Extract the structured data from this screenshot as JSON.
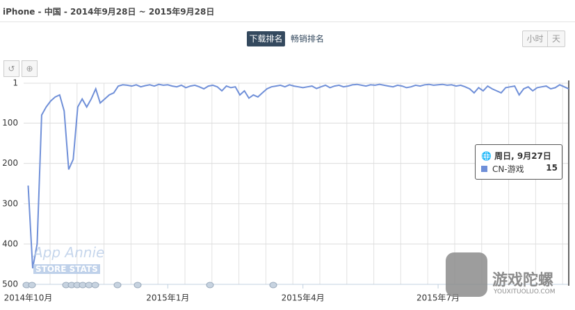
{
  "header": {
    "title": "iPhone - 中国 - 2014年9月28日 ~ 2015年9月28日"
  },
  "tabs": [
    "下载排名",
    "畅销排名"
  ],
  "granularity": [
    "小时",
    "天"
  ],
  "watermarks": {
    "app_annie": "App Annie",
    "store_stats": "STORE STATS",
    "brand": "游戏陀螺",
    "brand_url": "YOUXITUOLUO.COM"
  },
  "tooltip": {
    "date": "周日, 9月27日"
  },
  "chart_data": {
    "type": "line",
    "y_inverted": true,
    "grid": true,
    "ylim": [
      1,
      500
    ],
    "yticks": [
      1,
      100,
      200,
      300,
      400,
      500
    ],
    "categories": [
      null,
      "2014年10月",
      null,
      null,
      null,
      null,
      null,
      null,
      null,
      null,
      null,
      null,
      null,
      null,
      null,
      null,
      null,
      null,
      null,
      null,
      null,
      null,
      null,
      null,
      null,
      null,
      null,
      null,
      null,
      null,
      null,
      null,
      "2015年1月",
      null,
      null,
      null,
      null,
      null,
      null,
      null,
      null,
      null,
      null,
      null,
      null,
      null,
      null,
      null,
      null,
      null,
      null,
      null,
      null,
      null,
      null,
      null,
      null,
      null,
      null,
      null,
      null,
      null,
      "2015年4月",
      null,
      null,
      null,
      null,
      null,
      null,
      null,
      null,
      null,
      null,
      null,
      null,
      null,
      null,
      null,
      null,
      null,
      null,
      null,
      null,
      null,
      null,
      null,
      null,
      null,
      null,
      null,
      null,
      null,
      "2015年7月",
      null,
      null,
      null,
      null,
      null,
      null,
      null,
      null,
      null,
      null,
      null,
      null,
      null,
      null,
      null,
      null,
      null,
      null,
      null,
      null,
      null,
      null,
      null,
      null,
      null,
      null,
      null,
      null,
      null
    ],
    "series": [
      {
        "name": "CN-游戏",
        "color": "#6f8fd8",
        "values": [
          null,
          255,
          460,
          400,
          80,
          60,
          45,
          35,
          30,
          70,
          215,
          190,
          60,
          40,
          60,
          40,
          15,
          50,
          40,
          30,
          25,
          8,
          5,
          6,
          8,
          5,
          10,
          7,
          5,
          8,
          4,
          6,
          5,
          8,
          10,
          6,
          12,
          8,
          6,
          10,
          15,
          8,
          6,
          10,
          20,
          8,
          12,
          10,
          30,
          20,
          38,
          30,
          35,
          25,
          15,
          10,
          8,
          6,
          10,
          5,
          8,
          10,
          12,
          10,
          8,
          14,
          10,
          6,
          12,
          8,
          6,
          10,
          8,
          5,
          4,
          6,
          8,
          5,
          6,
          4,
          6,
          8,
          10,
          6,
          8,
          12,
          10,
          6,
          8,
          5,
          4,
          6,
          5,
          4,
          6,
          5,
          8,
          6,
          10,
          15,
          25,
          12,
          20,
          8,
          15,
          20,
          25,
          12,
          10,
          8,
          30,
          15,
          10,
          20,
          12,
          10,
          8,
          15,
          12,
          5,
          10,
          15
        ]
      }
    ]
  }
}
